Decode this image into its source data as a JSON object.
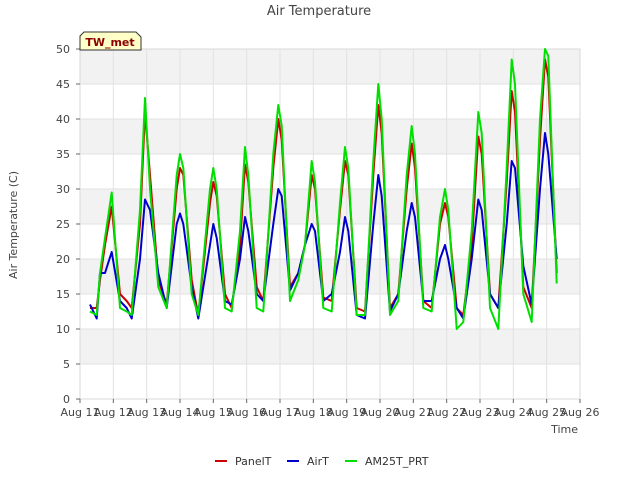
{
  "chart_data": {
    "type": "line",
    "title": "Air Temperature",
    "xlabel": "Time",
    "ylabel": "Air Temperature (C)",
    "annotation": "TW_met",
    "x_ticks": [
      "Aug 11",
      "Aug 12",
      "Aug 13",
      "Aug 14",
      "Aug 15",
      "Aug 16",
      "Aug 17",
      "Aug 18",
      "Aug 19",
      "Aug 20",
      "Aug 21",
      "Aug 22",
      "Aug 23",
      "Aug 24",
      "Aug 25",
      "Aug 26"
    ],
    "y_ticks": [
      0,
      5,
      10,
      15,
      20,
      25,
      30,
      35,
      40,
      45,
      50
    ],
    "xlim": [
      11,
      26
    ],
    "ylim": [
      0,
      50
    ],
    "grid": true,
    "legend_position": "bottom",
    "x_unit": "day of August 2024 (fractional)",
    "series": [
      {
        "name": "PanelT",
        "color": "#cc0000",
        "points": [
          [
            11.3,
            13
          ],
          [
            11.5,
            13
          ],
          [
            11.6,
            17
          ],
          [
            11.75,
            22
          ],
          [
            11.95,
            27.5
          ],
          [
            12.2,
            15
          ],
          [
            12.4,
            14
          ],
          [
            12.55,
            13
          ],
          [
            12.8,
            25
          ],
          [
            12.95,
            41
          ],
          [
            13.1,
            32
          ],
          [
            13.35,
            17
          ],
          [
            13.6,
            13.5
          ],
          [
            13.9,
            30
          ],
          [
            14.0,
            33
          ],
          [
            14.1,
            32
          ],
          [
            14.35,
            17
          ],
          [
            14.55,
            12
          ],
          [
            14.9,
            28
          ],
          [
            15.0,
            31
          ],
          [
            15.1,
            29
          ],
          [
            15.35,
            15
          ],
          [
            15.55,
            13
          ],
          [
            15.8,
            22
          ],
          [
            15.95,
            33.5
          ],
          [
            16.05,
            31
          ],
          [
            16.3,
            16
          ],
          [
            16.5,
            14
          ],
          [
            16.8,
            33
          ],
          [
            16.95,
            40
          ],
          [
            17.05,
            37
          ],
          [
            17.3,
            16
          ],
          [
            17.55,
            18
          ],
          [
            17.75,
            22
          ],
          [
            17.95,
            32
          ],
          [
            18.05,
            30
          ],
          [
            18.3,
            14.5
          ],
          [
            18.55,
            14
          ],
          [
            18.8,
            27
          ],
          [
            18.95,
            34
          ],
          [
            19.05,
            32
          ],
          [
            19.3,
            13
          ],
          [
            19.55,
            12.5
          ],
          [
            19.8,
            32
          ],
          [
            19.95,
            42
          ],
          [
            20.05,
            38
          ],
          [
            20.3,
            13
          ],
          [
            20.55,
            15
          ],
          [
            20.8,
            30
          ],
          [
            20.95,
            36.5
          ],
          [
            21.05,
            33
          ],
          [
            21.3,
            14
          ],
          [
            21.55,
            13
          ],
          [
            21.8,
            25
          ],
          [
            21.95,
            28
          ],
          [
            22.05,
            26
          ],
          [
            22.3,
            13
          ],
          [
            22.5,
            12
          ],
          [
            22.75,
            22
          ],
          [
            22.95,
            37.5
          ],
          [
            23.05,
            35
          ],
          [
            23.3,
            15
          ],
          [
            23.55,
            13
          ],
          [
            23.8,
            31
          ],
          [
            23.95,
            44
          ],
          [
            24.05,
            41
          ],
          [
            24.3,
            16
          ],
          [
            24.55,
            13
          ],
          [
            24.8,
            37
          ],
          [
            24.95,
            48.5
          ],
          [
            25.05,
            46
          ],
          [
            25.3,
            18
          ]
        ]
      },
      {
        "name": "AirT",
        "color": "#0000cc",
        "points": [
          [
            11.3,
            13.5
          ],
          [
            11.5,
            11.5
          ],
          [
            11.6,
            18
          ],
          [
            11.75,
            18
          ],
          [
            11.95,
            21
          ],
          [
            12.2,
            14
          ],
          [
            12.4,
            13
          ],
          [
            12.55,
            11.5
          ],
          [
            12.8,
            20
          ],
          [
            12.95,
            28.5
          ],
          [
            13.1,
            27
          ],
          [
            13.35,
            18
          ],
          [
            13.6,
            13
          ],
          [
            13.9,
            25
          ],
          [
            14.0,
            26.5
          ],
          [
            14.1,
            25
          ],
          [
            14.35,
            16
          ],
          [
            14.55,
            11.5
          ],
          [
            14.9,
            22
          ],
          [
            15.0,
            25
          ],
          [
            15.1,
            23
          ],
          [
            15.35,
            14
          ],
          [
            15.55,
            13.5
          ],
          [
            15.8,
            20
          ],
          [
            15.95,
            26
          ],
          [
            16.05,
            24
          ],
          [
            16.3,
            15
          ],
          [
            16.5,
            14
          ],
          [
            16.8,
            25
          ],
          [
            16.95,
            30
          ],
          [
            17.05,
            29
          ],
          [
            17.3,
            15.5
          ],
          [
            17.55,
            18
          ],
          [
            17.75,
            22
          ],
          [
            17.95,
            25
          ],
          [
            18.05,
            24
          ],
          [
            18.3,
            14
          ],
          [
            18.55,
            15
          ],
          [
            18.8,
            21
          ],
          [
            18.95,
            26
          ],
          [
            19.05,
            24
          ],
          [
            19.3,
            12
          ],
          [
            19.55,
            11.5
          ],
          [
            19.8,
            25
          ],
          [
            19.95,
            32
          ],
          [
            20.05,
            29
          ],
          [
            20.3,
            12.5
          ],
          [
            20.55,
            15
          ],
          [
            20.8,
            24
          ],
          [
            20.95,
            28
          ],
          [
            21.05,
            26
          ],
          [
            21.3,
            14
          ],
          [
            21.55,
            14
          ],
          [
            21.8,
            20
          ],
          [
            21.95,
            22
          ],
          [
            22.05,
            20
          ],
          [
            22.3,
            13
          ],
          [
            22.5,
            11.5
          ],
          [
            22.75,
            20
          ],
          [
            22.95,
            28.5
          ],
          [
            23.05,
            27
          ],
          [
            23.3,
            15
          ],
          [
            23.55,
            13
          ],
          [
            23.8,
            25
          ],
          [
            23.95,
            34
          ],
          [
            24.05,
            33
          ],
          [
            24.3,
            19
          ],
          [
            24.55,
            13.5
          ],
          [
            24.8,
            30
          ],
          [
            24.95,
            38
          ],
          [
            25.05,
            35
          ],
          [
            25.3,
            20
          ]
        ]
      },
      {
        "name": "AM25T_PRT",
        "color": "#00e000",
        "points": [
          [
            11.3,
            12.5
          ],
          [
            11.5,
            12
          ],
          [
            11.6,
            18
          ],
          [
            11.75,
            23
          ],
          [
            11.95,
            29.5
          ],
          [
            12.2,
            13
          ],
          [
            12.4,
            12.5
          ],
          [
            12.55,
            12
          ],
          [
            12.8,
            27
          ],
          [
            12.95,
            43
          ],
          [
            13.1,
            30
          ],
          [
            13.35,
            16
          ],
          [
            13.6,
            13
          ],
          [
            13.9,
            32
          ],
          [
            14.0,
            35
          ],
          [
            14.1,
            33
          ],
          [
            14.35,
            15
          ],
          [
            14.55,
            12
          ],
          [
            14.9,
            30
          ],
          [
            15.0,
            33
          ],
          [
            15.1,
            30
          ],
          [
            15.35,
            13
          ],
          [
            15.55,
            12.5
          ],
          [
            15.8,
            24
          ],
          [
            15.95,
            36
          ],
          [
            16.05,
            32
          ],
          [
            16.3,
            13
          ],
          [
            16.5,
            12.5
          ],
          [
            16.8,
            35
          ],
          [
            16.95,
            42
          ],
          [
            17.05,
            39
          ],
          [
            17.3,
            14
          ],
          [
            17.55,
            17
          ],
          [
            17.75,
            22
          ],
          [
            17.95,
            34
          ],
          [
            18.05,
            31
          ],
          [
            18.3,
            13
          ],
          [
            18.55,
            12.5
          ],
          [
            18.8,
            28
          ],
          [
            18.95,
            36
          ],
          [
            19.05,
            33
          ],
          [
            19.3,
            12
          ],
          [
            19.55,
            12
          ],
          [
            19.8,
            34
          ],
          [
            19.95,
            45
          ],
          [
            20.05,
            40
          ],
          [
            20.3,
            12
          ],
          [
            20.55,
            14
          ],
          [
            20.8,
            32
          ],
          [
            20.95,
            39
          ],
          [
            21.05,
            35
          ],
          [
            21.3,
            13
          ],
          [
            21.55,
            12.5
          ],
          [
            21.8,
            26
          ],
          [
            21.95,
            30
          ],
          [
            22.05,
            27
          ],
          [
            22.3,
            10
          ],
          [
            22.5,
            11
          ],
          [
            22.75,
            24
          ],
          [
            22.95,
            41
          ],
          [
            23.05,
            38
          ],
          [
            23.3,
            13
          ],
          [
            23.55,
            10
          ],
          [
            23.8,
            33
          ],
          [
            23.95,
            48.5
          ],
          [
            24.05,
            45
          ],
          [
            24.3,
            15
          ],
          [
            24.55,
            11
          ],
          [
            24.8,
            40
          ],
          [
            24.95,
            50
          ],
          [
            25.05,
            49
          ],
          [
            25.3,
            16.5
          ]
        ]
      }
    ]
  }
}
